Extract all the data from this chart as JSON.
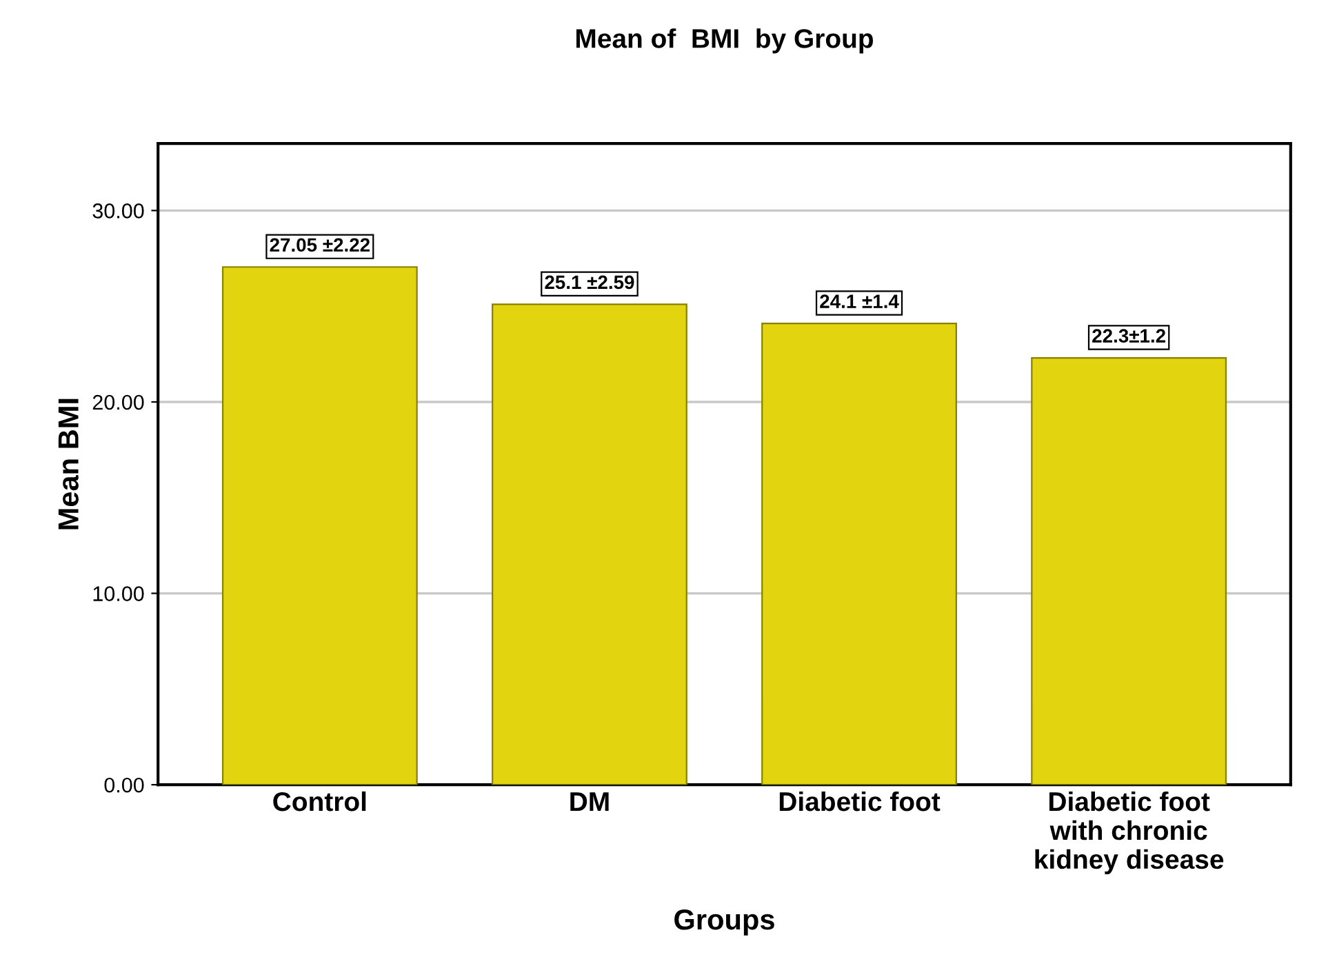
{
  "chart_data": {
    "type": "bar",
    "title": "Mean of  BMI  by Group",
    "xlabel": "Groups",
    "ylabel": "Mean BMI",
    "categories": [
      "Control",
      "DM",
      "Diabetic foot",
      "Diabetic foot\nwith chronic\nkidney disease"
    ],
    "values": [
      27.05,
      25.1,
      24.1,
      22.3
    ],
    "value_labels": [
      "27.05 ±2.22",
      "25.1 ±2.59",
      "24.1 ±1.4",
      "22.3±1.2"
    ],
    "color": "#e2d510",
    "ylim": [
      0,
      33.5
    ],
    "yticks": [
      {
        "value": 0,
        "label": "0.00"
      },
      {
        "value": 10,
        "label": "10.00"
      },
      {
        "value": 20,
        "label": "20.00"
      },
      {
        "value": 30,
        "label": "30.00"
      }
    ],
    "grid": "y",
    "legend": false
  }
}
